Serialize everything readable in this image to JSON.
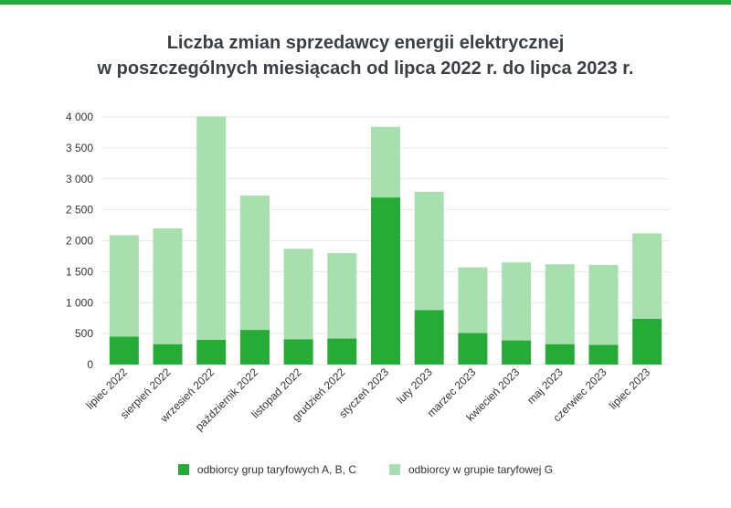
{
  "colors": {
    "top_bar": "#2aaa3a",
    "series_abc": "#27ab37",
    "series_g": "#a8dfae",
    "grid": "#e6e6e6",
    "text": "#333333"
  },
  "chart_data": {
    "type": "bar",
    "stacked": true,
    "title_line1": "Liczba zmian sprzedawcy energii elektrycznej",
    "title_line2": "w poszczególnych miesiącach od lipca 2022 r. do lipca 2023 r.",
    "xlabel": "",
    "ylabel": "",
    "ylim": [
      0,
      4000
    ],
    "yticks": [
      0,
      500,
      1000,
      1500,
      2000,
      2500,
      3000,
      3500,
      4000
    ],
    "ytick_labels": [
      "0",
      "500",
      "1 000",
      "1 500",
      "2 000",
      "2 500",
      "3 000",
      "3 500",
      "4 000"
    ],
    "grid": true,
    "legend_position": "bottom",
    "categories": [
      "lipiec 2022",
      "sierpień 2022",
      "wrzesień 2022",
      "październik 2022",
      "listopad 2022",
      "grudzień 2022",
      "styczeń 2023",
      "luty 2023",
      "marzec 2023",
      "kwiecień 2023",
      "maj 2023",
      "czerwiec 2023",
      "lipiec 2023"
    ],
    "series": [
      {
        "name": "odbiorcy grup taryfowych A, B, C",
        "values": [
          450,
          330,
          400,
          560,
          410,
          420,
          2700,
          880,
          510,
          390,
          330,
          320,
          740
        ]
      },
      {
        "name": "odbiorcy w grupie taryfowej G",
        "values": [
          1640,
          1870,
          3610,
          2170,
          1460,
          1380,
          1140,
          1910,
          1060,
          1260,
          1290,
          1290,
          1380
        ]
      }
    ]
  }
}
